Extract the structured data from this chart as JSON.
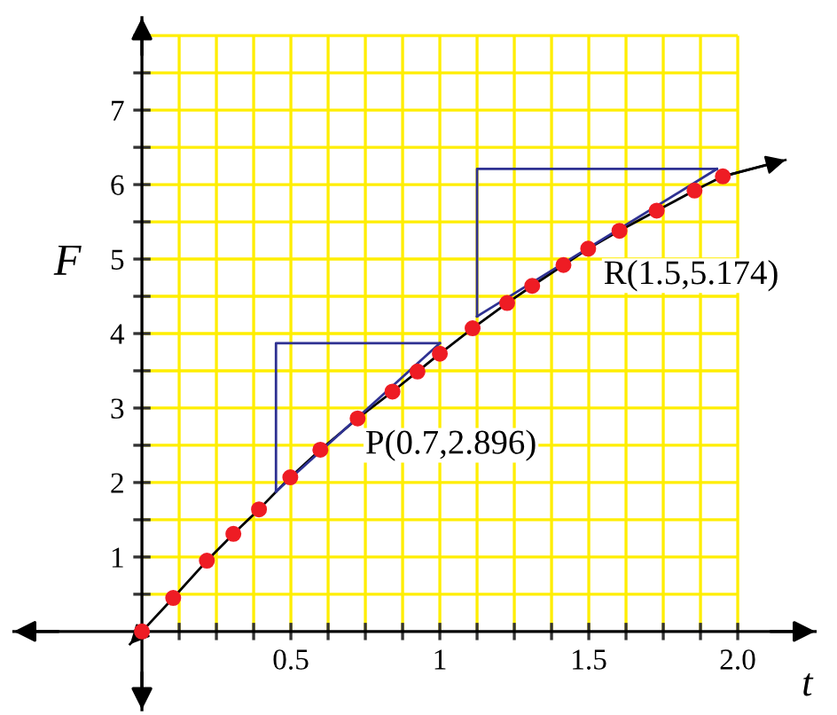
{
  "chart_data": {
    "type": "line",
    "xlabel": "t",
    "ylabel": "F",
    "xlim": [
      -0.43,
      2.26
    ],
    "ylim": [
      -1.05,
      8.24
    ],
    "xticks": [
      {
        "value": 0.125,
        "label": null
      },
      {
        "value": 0.25,
        "label": null
      },
      {
        "value": 0.375,
        "label": null
      },
      0.5,
      {
        "value": 0.625,
        "label": null
      },
      {
        "value": 0.75,
        "label": null
      },
      {
        "value": 0.875,
        "label": null
      },
      1,
      {
        "value": 1.125,
        "label": null
      },
      {
        "value": 1.25,
        "label": null
      },
      {
        "value": 1.375,
        "label": null
      },
      1.5,
      {
        "value": 1.625,
        "label": null
      },
      {
        "value": 1.75,
        "label": null
      },
      {
        "value": 1.875,
        "label": null
      },
      {
        "value": 2,
        "label": "2.0"
      }
    ],
    "yticks": [
      {
        "value": 0.5,
        "label": null
      },
      1,
      {
        "value": 1.5,
        "label": null
      },
      2,
      {
        "value": 2.5,
        "label": null
      },
      3,
      {
        "value": 3.5,
        "label": null
      },
      4,
      {
        "value": 4.5,
        "label": null
      },
      5,
      {
        "value": 5.5,
        "label": null
      },
      6,
      {
        "value": 6.5,
        "label": null
      },
      7,
      {
        "value": 7.5,
        "label": null
      },
      {
        "value": 8,
        "label": null
      }
    ],
    "grid": true,
    "series": [
      {
        "color": "#000000",
        "marker": "none",
        "x": [
          -0.04,
          0,
          0.105,
          0.218,
          0.307,
          0.393,
          0.498,
          0.599,
          0.724,
          0.841,
          0.925,
          1.0,
          1.11,
          1.226,
          1.31,
          1.415,
          1.498,
          1.603,
          1.728,
          1.855,
          1.95,
          2.16
        ],
        "values": [
          -0.17,
          0,
          0.45,
          0.95,
          1.31,
          1.64,
          2.07,
          2.44,
          2.86,
          3.22,
          3.49,
          3.73,
          4.07,
          4.41,
          4.64,
          4.92,
          5.14,
          5.38,
          5.65,
          5.92,
          6.11,
          6.33
        ]
      },
      {
        "type": "line",
        "color": "#2e3192",
        "marker": "none",
        "x": [
          0.45,
          1.0
        ],
        "values": [
          1.88,
          3.87
        ]
      },
      {
        "type": "line",
        "color": "#2e3192",
        "marker": "none",
        "x": [
          0.45,
          0.45,
          1.0
        ],
        "values": [
          1.88,
          3.87,
          3.87
        ]
      },
      {
        "type": "line",
        "color": "#2e3192",
        "marker": "none",
        "x": [
          1.125,
          1.93
        ],
        "values": [
          4.23,
          6.21
        ]
      },
      {
        "type": "line",
        "color": "#2e3192",
        "marker": "none",
        "x": [
          1.125,
          1.125,
          1.93
        ],
        "values": [
          4.23,
          6.21,
          6.21
        ]
      },
      {
        "type": "scatter",
        "color": "#ee1c24",
        "marker": "circle",
        "x": [
          0,
          0.105,
          0.218,
          0.307,
          0.393,
          0.498,
          0.599,
          0.724,
          0.841,
          0.925,
          1.0,
          1.11,
          1.226,
          1.31,
          1.415,
          1.498,
          1.603,
          1.728,
          1.855,
          1.95
        ],
        "values": [
          0,
          0.45,
          0.95,
          1.31,
          1.64,
          2.07,
          2.44,
          2.86,
          3.22,
          3.49,
          3.73,
          4.07,
          4.41,
          4.64,
          4.92,
          5.14,
          5.38,
          5.65,
          5.92,
          6.11
        ]
      }
    ],
    "annotations": [
      {
        "text": "P(0.7,2.896)",
        "x": 0.7,
        "y": 2.896
      },
      {
        "text": "R(1.5,5.174)",
        "x": 1.5,
        "y": 5.174
      }
    ]
  }
}
